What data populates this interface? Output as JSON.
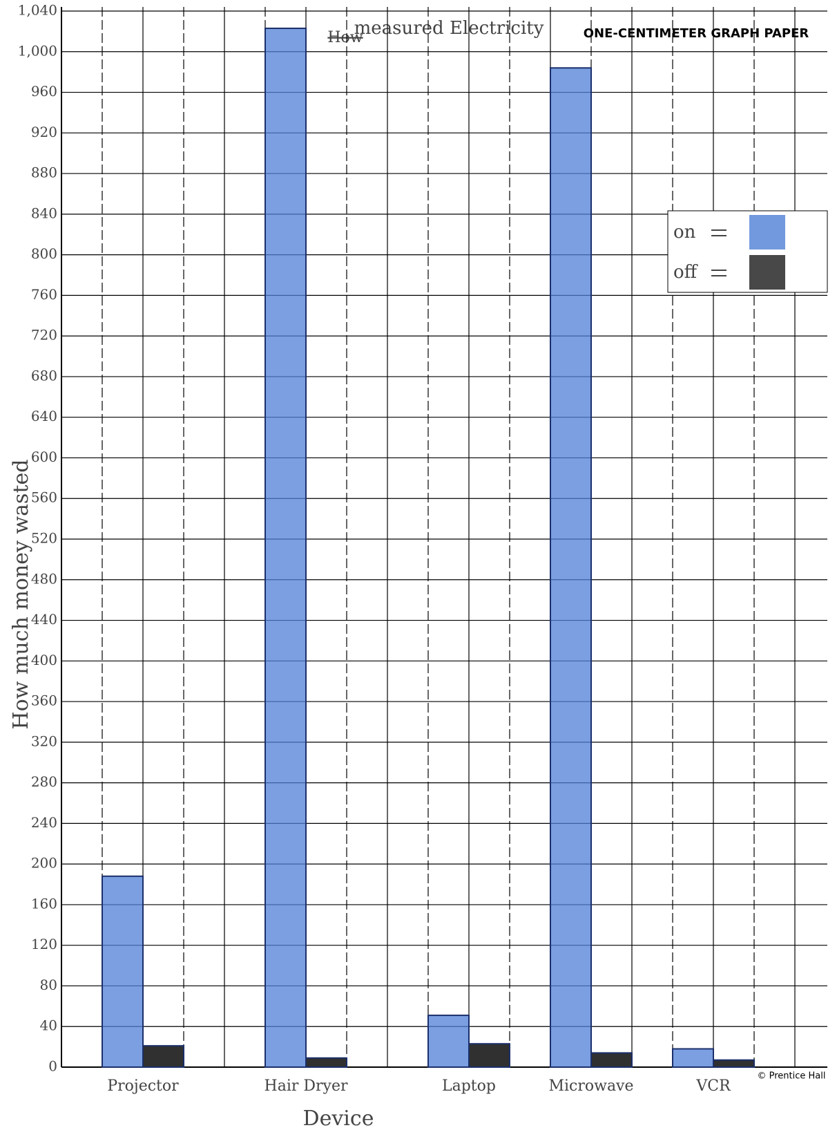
{
  "chart_data": {
    "type": "bar",
    "header": "ONE-CENTIMETER GRAPH PAPER",
    "title_struck": "How",
    "title": "measured Electricity",
    "y_label": "How much money wasted",
    "x_label": "Device",
    "credit": "© Prentice Hall",
    "categories": [
      "Projector",
      "Hair Dryer",
      "Laptop",
      "Microwave",
      "VCR"
    ],
    "series": [
      {
        "name": "on",
        "color": "#4f7fd6",
        "values": [
          188,
          1023,
          51,
          984,
          18
        ]
      },
      {
        "name": "off",
        "color": "#1a1a1a",
        "values": [
          21,
          9,
          23,
          14,
          7
        ]
      }
    ],
    "ylim": [
      0,
      1040
    ],
    "yticks": [
      0,
      40,
      80,
      120,
      160,
      200,
      240,
      280,
      320,
      360,
      400,
      440,
      480,
      520,
      560,
      600,
      640,
      680,
      720,
      760,
      800,
      840,
      880,
      920,
      960,
      {
        "value": 1000,
        "label": "1,000"
      },
      {
        "value": 1040,
        "label": "1,040"
      }
    ],
    "grid": true,
    "legend": "upper right"
  }
}
